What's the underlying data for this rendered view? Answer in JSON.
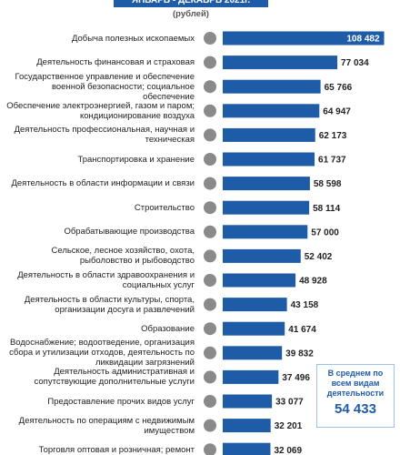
{
  "chart_data": {
    "type": "bar",
    "orientation": "horizontal",
    "title": "ЯНВАРЬ - ДЕКАБРЬ 2021г.",
    "subtitle": "(рублей)",
    "categories": [
      "Добыча полезных ископаемых",
      "Деятельность финансовая и страховая",
      "Государственное управление и обеспечение военной безопасности; социальное обеспечение",
      "Обеспечение электроэнергией, газом и паром; кондиционирование воздуха",
      "Деятельность профессиональная, научная и техническая",
      "Транспортировка и хранение",
      "Деятельность в области информации и связи",
      "Строительство",
      "Обрабатывающие производства",
      "Сельское, лесное хозяйство, охота, рыболовство и рыбоводство",
      "Деятельность в области здравоохранения и социальных услуг",
      "Деятельность в области культуры, спорта, организации досуга и развлечений",
      "Образование",
      "Водоснабжение; водоотведение, организация сбора и утилизации отходов, деятельность по ликвидации загрязнений",
      "Деятельность административная и сопутствующие дополнительные услуги",
      "Предоставление прочих видов услуг",
      "Деятельность по операциям с недвижимым имуществом",
      "Торговля оптовая и розничная; ремонт"
    ],
    "values": [
      108482,
      77034,
      65766,
      64947,
      62173,
      61737,
      58598,
      58114,
      57000,
      52402,
      48928,
      43158,
      41674,
      39832,
      37496,
      33077,
      32201,
      32069
    ],
    "value_labels": [
      "108 482",
      "77 034",
      "65 766",
      "64 947",
      "62 173",
      "61 737",
      "58 598",
      "58 114",
      "57 000",
      "52 402",
      "48 928",
      "43 158",
      "41 674",
      "39 832",
      "37 496",
      "33 077",
      "32 201",
      "32 069"
    ],
    "color": "#1f5ca8",
    "xlim": [
      0,
      110000
    ],
    "annotation": {
      "text": "В среднем по всем видам деятельности",
      "value_label": "54 433"
    }
  }
}
